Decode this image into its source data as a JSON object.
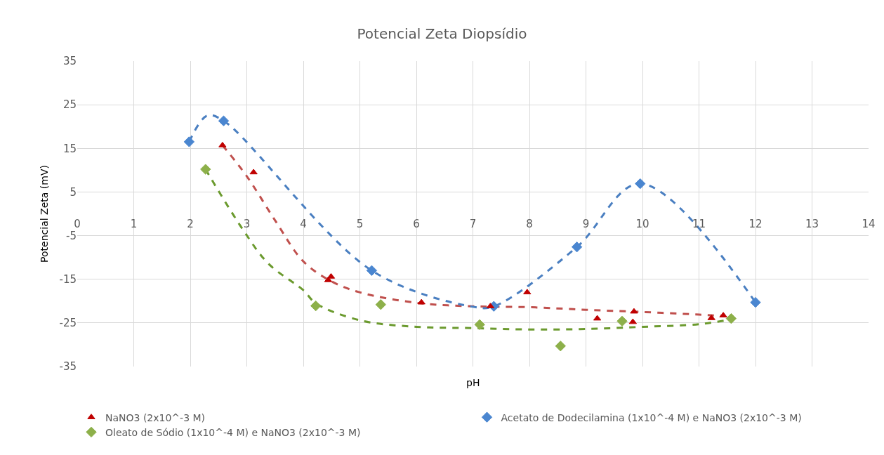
{
  "chart_data": {
    "type": "scatter",
    "title": "Potencial Zeta Diopsídio",
    "xlabel": "pH",
    "ylabel": "Potencial Zeta (mV)",
    "xlim": [
      0,
      14
    ],
    "xticks": [
      0,
      1,
      2,
      3,
      4,
      5,
      6,
      7,
      8,
      9,
      10,
      11,
      12,
      13,
      14
    ],
    "ylim": [
      -35,
      35
    ],
    "yticks": [
      -35,
      -25,
      -15,
      -5,
      5,
      15,
      25,
      35
    ],
    "grid": true,
    "legend": "bottom",
    "series": [
      {
        "name": "NaNO3 (2x10^-3 M)",
        "color": "#c00000",
        "marker": "triangle",
        "x": [
          2.57,
          3.12,
          4.44,
          4.49,
          6.09,
          7.31,
          7.96,
          9.2,
          9.85,
          9.83,
          11.22,
          11.43
        ],
        "values": [
          15.7,
          9.5,
          -15.2,
          -14.4,
          -20.3,
          -21.2,
          -18.0,
          -24.0,
          -22.4,
          -24.8,
          -23.9,
          -23.3
        ]
      },
      {
        "name": "Acetato de Dodecilamina (1x10^-4 M) e NaNO3 (2x10^-3 M)",
        "color": "#4a86d0",
        "marker": "diamond",
        "x": [
          1.98,
          2.59,
          5.21,
          7.37,
          8.84,
          9.96,
          12.0
        ],
        "values": [
          16.5,
          21.3,
          -13.0,
          -21.2,
          -7.6,
          6.9,
          -20.3
        ]
      },
      {
        "name": "Oleato de Sódio (1x10^-4 M) e NaNO3 (2x10^-3 M)",
        "color": "#8db04a",
        "marker": "diamond",
        "x": [
          2.27,
          4.22,
          5.37,
          7.12,
          8.55,
          9.64,
          11.57
        ],
        "values": [
          10.2,
          -21.1,
          -20.8,
          -25.4,
          -30.3,
          -24.6,
          -24.0
        ]
      },
      {
        "type": "line",
        "color": "#c0504d",
        "line_style": "dashed",
        "x": [
          2.57,
          3.0,
          3.5,
          4.0,
          4.5,
          5.0,
          6.0,
          7.0,
          8.0,
          9.0,
          10.0,
          11.0,
          11.43
        ],
        "values": [
          15.7,
          8.6,
          -1.5,
          -10.9,
          -15.5,
          -18.0,
          -20.4,
          -21.2,
          -21.4,
          -22.0,
          -22.5,
          -23.1,
          -23.4
        ]
      },
      {
        "type": "line",
        "color": "#4a7fc1",
        "line_style": "dashed",
        "x": [
          1.98,
          2.3,
          2.59,
          5.21,
          7.0,
          7.37,
          8.84,
          9.96,
          12.0
        ],
        "values": [
          16.5,
          22.5,
          21.3,
          -13.0,
          -21.3,
          -21.2,
          -7.6,
          6.9,
          -20.3
        ]
      },
      {
        "type": "line",
        "color": "#6b9a2e",
        "line_style": "dashed",
        "x": [
          2.27,
          2.92,
          3.38,
          4.0,
          4.22,
          5.0,
          6.0,
          7.0,
          8.0,
          9.0,
          10.0,
          11.0,
          11.57
        ],
        "values": [
          10.2,
          -3.4,
          -11.4,
          -17.5,
          -20.5,
          -24.4,
          -25.9,
          -26.2,
          -26.5,
          -26.4,
          -25.9,
          -25.3,
          -24.2
        ]
      }
    ]
  }
}
